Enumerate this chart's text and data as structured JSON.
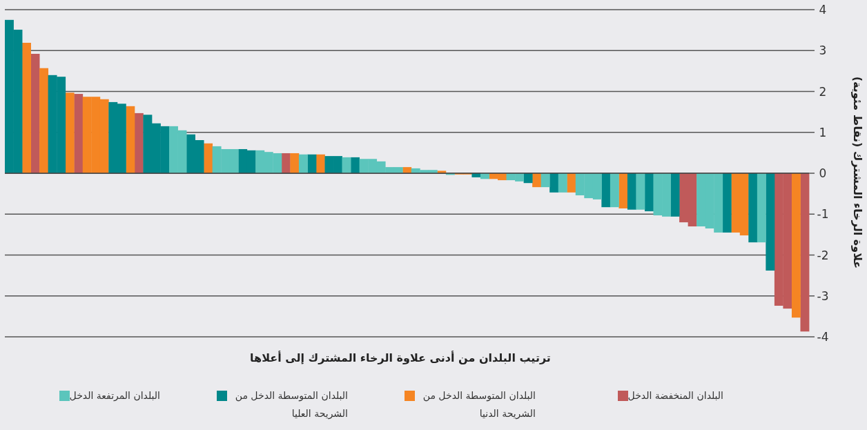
{
  "chart_data": {
    "type": "bar",
    "xlabel": "ترتيب البلدان من أدنى علاوة الرخاء المشترك إلى أعلاها",
    "ylabel": "علاوة الرخاء المشترك (نقاط مئوية)",
    "categories": [
      null,
      null,
      null,
      null,
      null,
      null,
      null,
      null,
      null,
      null,
      null,
      null,
      null,
      null,
      null,
      null,
      null,
      null,
      null,
      null,
      null,
      null,
      null,
      null,
      null,
      null,
      null,
      null,
      null,
      null,
      null,
      null,
      null,
      null,
      null,
      null,
      null,
      null,
      null,
      null,
      null,
      null,
      null,
      null,
      null,
      null,
      null,
      null,
      null,
      null,
      null,
      null,
      null,
      null,
      null,
      null,
      null,
      null,
      null,
      null,
      null,
      null,
      null,
      null,
      null,
      null,
      null,
      null,
      null,
      null,
      null,
      null,
      null,
      null,
      null,
      null,
      null,
      null,
      null,
      null,
      null,
      null,
      null,
      null,
      null,
      null,
      null,
      null,
      null,
      null,
      null,
      null,
      null
    ],
    "ylim": [
      -4,
      4
    ],
    "yticks": [
      {
        "value": 4,
        "label": "4"
      },
      {
        "value": 3,
        "label": "3"
      },
      {
        "value": 2,
        "label": "2"
      },
      {
        "value": 1,
        "label": "1"
      },
      {
        "value": 0,
        "label": "0"
      },
      {
        "value": -1,
        "label": "-1"
      },
      {
        "value": -2,
        "label": "-2"
      },
      {
        "value": -3,
        "label": "-3"
      },
      {
        "value": -4,
        "label": "-4"
      }
    ],
    "grid": "y",
    "legend": "bottom",
    "tick_labels": "y",
    "series": [
      {
        "name": "البلدان المنخفضة الدخل",
        "color": "#c05a5a",
        "values": [
          null,
          null,
          null,
          2.92,
          null,
          null,
          null,
          null,
          1.94,
          null,
          null,
          null,
          null,
          null,
          null,
          1.47,
          null,
          null,
          null,
          null,
          null,
          null,
          null,
          null,
          null,
          null,
          null,
          null,
          null,
          null,
          null,
          null,
          0.49,
          null,
          null,
          null,
          null,
          null,
          null,
          null,
          null,
          null,
          null,
          null,
          null,
          null,
          null,
          null,
          null,
          null,
          null,
          null,
          null,
          null,
          null,
          null,
          null,
          null,
          null,
          null,
          null,
          null,
          null,
          null,
          null,
          null,
          null,
          null,
          null,
          null,
          null,
          null,
          null,
          null,
          null,
          null,
          null,
          null,
          -1.2,
          -1.3,
          null,
          null,
          null,
          null,
          null,
          null,
          null,
          null,
          null,
          -3.24,
          -3.31,
          null,
          -3.87
        ]
      },
      {
        "name": "البلدان المتوسطة الدخل من الشريحة الدنيا",
        "color": "#f58523",
        "values": [
          null,
          null,
          3.19,
          null,
          2.57,
          null,
          null,
          1.97,
          null,
          1.87,
          1.87,
          1.81,
          null,
          null,
          1.64,
          null,
          null,
          null,
          null,
          null,
          null,
          null,
          null,
          0.73,
          null,
          null,
          null,
          null,
          null,
          null,
          null,
          null,
          null,
          0.49,
          null,
          null,
          0.46,
          null,
          null,
          null,
          null,
          null,
          null,
          null,
          null,
          null,
          0.15,
          null,
          null,
          null,
          0.06,
          null,
          -0.03,
          -0.03,
          null,
          null,
          -0.14,
          -0.17,
          null,
          null,
          null,
          -0.34,
          null,
          null,
          null,
          -0.47,
          null,
          null,
          null,
          null,
          null,
          -0.86,
          null,
          null,
          null,
          null,
          null,
          null,
          null,
          null,
          null,
          null,
          null,
          null,
          -1.45,
          -1.52,
          null,
          null,
          null,
          null,
          null,
          -3.53,
          null
        ]
      },
      {
        "name": "البلدان المتوسطة الدخل من الشريحة العليا",
        "color": "#00878a",
        "values": [
          3.75,
          3.51,
          null,
          null,
          null,
          2.4,
          2.36,
          null,
          null,
          null,
          null,
          null,
          1.74,
          1.7,
          null,
          null,
          1.43,
          1.22,
          1.15,
          null,
          null,
          0.95,
          0.81,
          null,
          null,
          null,
          null,
          0.59,
          0.56,
          null,
          null,
          null,
          null,
          null,
          null,
          0.46,
          null,
          0.42,
          0.42,
          null,
          0.39,
          null,
          null,
          null,
          null,
          null,
          null,
          null,
          null,
          null,
          null,
          null,
          null,
          null,
          -0.1,
          null,
          null,
          null,
          null,
          null,
          -0.24,
          null,
          null,
          -0.47,
          null,
          null,
          null,
          null,
          null,
          -0.83,
          null,
          null,
          -0.89,
          null,
          -0.93,
          null,
          null,
          -1.06,
          null,
          null,
          null,
          null,
          null,
          -1.45,
          null,
          null,
          -1.69,
          null,
          -2.38,
          null,
          null,
          null,
          null
        ]
      },
      {
        "name": "البلدان المرتفعة الدخل",
        "color": "#5bc5bc",
        "values": [
          null,
          null,
          null,
          null,
          null,
          null,
          null,
          null,
          null,
          null,
          null,
          null,
          null,
          null,
          null,
          null,
          null,
          null,
          null,
          1.15,
          1.05,
          null,
          null,
          null,
          0.66,
          0.59,
          0.59,
          null,
          null,
          0.56,
          0.52,
          0.49,
          null,
          null,
          0.46,
          null,
          null,
          null,
          null,
          0.39,
          null,
          0.35,
          0.35,
          0.29,
          0.15,
          0.15,
          null,
          0.12,
          0.08,
          0.08,
          null,
          -0.04,
          null,
          null,
          null,
          -0.14,
          null,
          null,
          -0.17,
          -0.2,
          null,
          null,
          -0.34,
          null,
          -0.47,
          null,
          -0.54,
          -0.61,
          -0.64,
          null,
          -0.83,
          null,
          null,
          -0.89,
          null,
          -1.03,
          -1.06,
          null,
          null,
          null,
          -1.3,
          -1.35,
          -1.45,
          null,
          null,
          null,
          null,
          -1.69,
          null,
          null,
          null,
          null,
          null
        ]
      }
    ]
  }
}
